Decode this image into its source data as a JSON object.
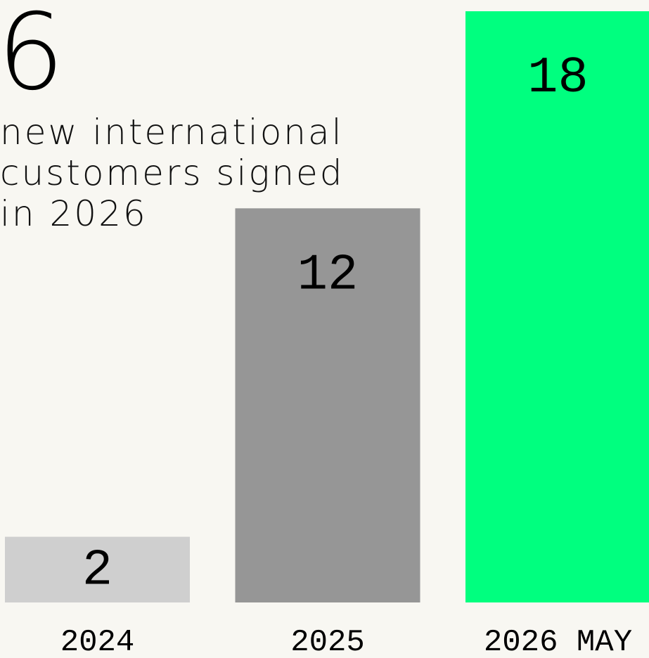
{
  "chart_data": {
    "type": "bar",
    "headline": "6",
    "subtitle_lines": [
      "new international",
      "customers signed",
      "in 2026"
    ],
    "categories": [
      "2024",
      "2025",
      "2026 MAY"
    ],
    "values": [
      2,
      12,
      18
    ],
    "colors": [
      "#cfcfcf",
      "#969696",
      "#00ff7f"
    ]
  }
}
